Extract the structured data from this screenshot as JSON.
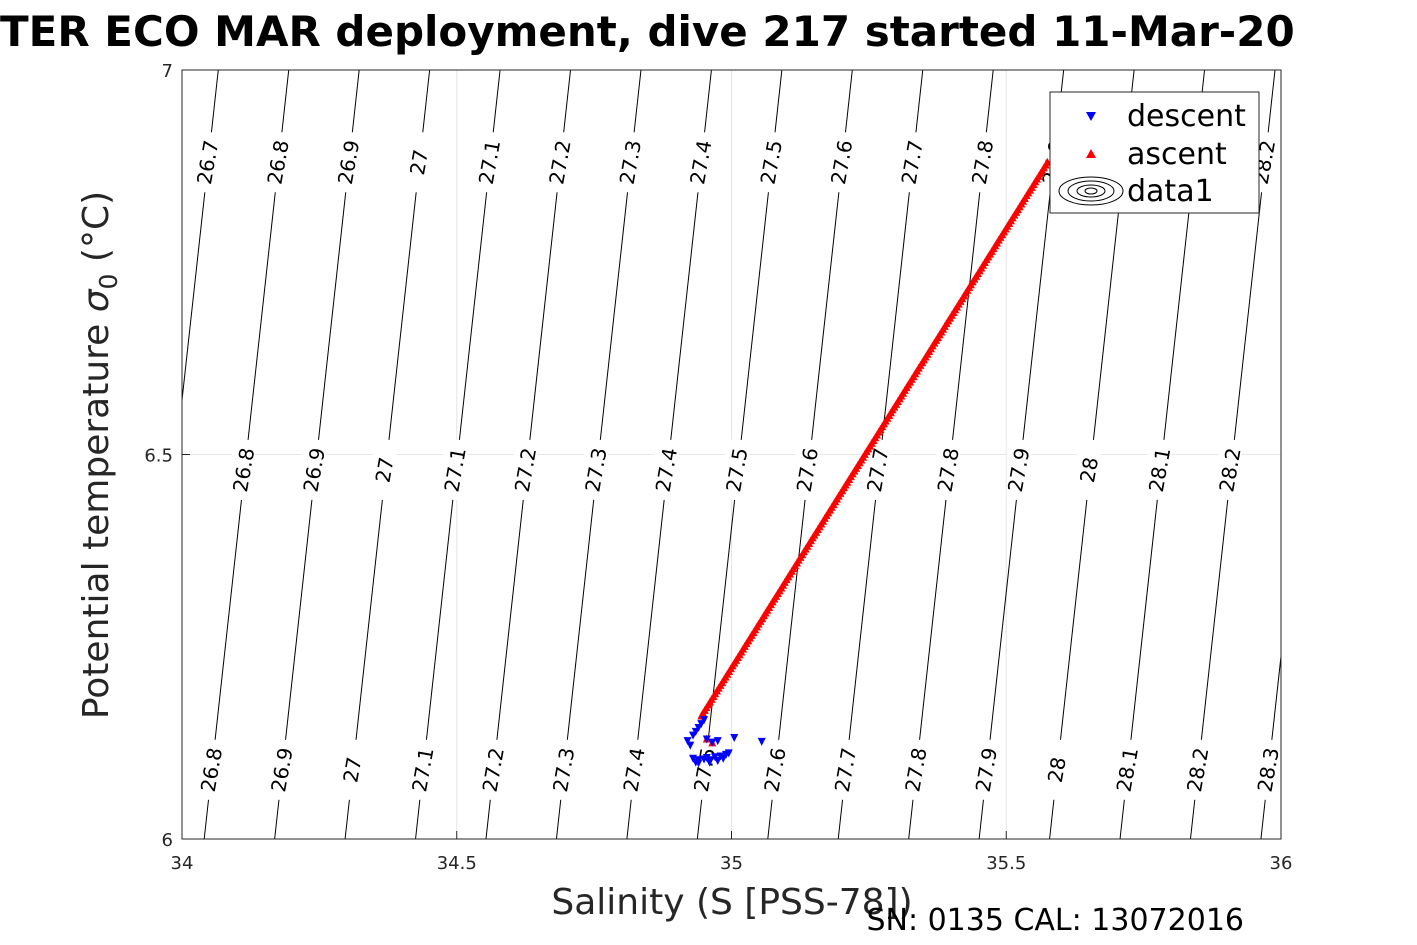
{
  "chart_data": {
    "type": "scatter",
    "title": "TER ECO MAR deployment, dive 217 started 11-Mar-20",
    "xlabel": "Salinity (S [PSS-78])",
    "ylabel_main": "Potential temperature ",
    "ylabel_sigma": "σ",
    "ylabel_sub": "0",
    "ylabel_unit": " (°C)",
    "footer": "SN: 0135  CAL: 13072016",
    "xlim": [
      34,
      36
    ],
    "ylim": [
      6,
      7
    ],
    "xticks": [
      "34",
      "34.5",
      "35",
      "35.5",
      "36"
    ],
    "yticks": [
      "6",
      "6.5",
      "7"
    ],
    "grid": true,
    "legend_position": "top-right",
    "legend": [
      {
        "name": "descent",
        "marker": "triangle-down",
        "color": "#0000ff"
      },
      {
        "name": "ascent",
        "marker": "triangle-up",
        "color": "#ff0000"
      },
      {
        "name": "data1",
        "marker": "contour",
        "color": "#000000"
      }
    ],
    "density_contours": {
      "levels": [
        26.7,
        26.8,
        26.9,
        27.0,
        27.1,
        27.2,
        27.3,
        27.4,
        27.5,
        27.6,
        27.7,
        27.8,
        27.9,
        28.0,
        28.1,
        28.2,
        28.3
      ],
      "label_rows": [
        {
          "y": 6.88,
          "labels": [
            "26.7",
            "26.8",
            "26.9",
            "27",
            "27.1",
            "27.2",
            "27.3",
            "27.4",
            "27.5",
            "27.6",
            "27.7",
            "27.8",
            "27.9",
            "28.2"
          ]
        },
        {
          "y": 6.48,
          "labels": [
            "26.8",
            "26.9",
            "27",
            "27.1",
            "27.2",
            "27.3",
            "27.4",
            "27.5",
            "27.6",
            "27.7",
            "27.8",
            "27.9",
            "28",
            "28.1",
            "28.2"
          ]
        },
        {
          "y": 6.09,
          "labels": [
            "26.8",
            "26.9",
            "27",
            "27.1",
            "27.2",
            "27.3",
            "27.4",
            "27.5",
            "27.6",
            "27.7",
            "27.8",
            "27.9",
            "28",
            "28.1",
            "28.2",
            "28.3"
          ]
        }
      ]
    },
    "series": [
      {
        "name": "descent",
        "x": [
          34.93,
          34.935,
          34.94,
          34.945,
          34.95,
          34.92,
          34.925,
          34.93,
          34.94,
          34.95,
          34.955,
          34.96,
          34.97,
          34.98,
          34.99,
          34.995,
          34.935,
          34.94,
          34.96,
          34.975,
          34.985,
          34.955,
          34.965,
          34.975,
          35.005,
          35.055
        ],
        "y": [
          6.135,
          6.14,
          6.145,
          6.15,
          6.155,
          6.128,
          6.122,
          6.105,
          6.103,
          6.104,
          6.106,
          6.103,
          6.107,
          6.108,
          6.11,
          6.112,
          6.1,
          6.099,
          6.1,
          6.102,
          6.105,
          6.13,
          6.126,
          6.128,
          6.132,
          6.127
        ]
      },
      {
        "name": "ascent",
        "x_start": 34.945,
        "y_start": 6.16,
        "x_end": 35.575,
        "y_end": 6.88,
        "count": 200,
        "extra": [
          [
            34.955,
            6.13
          ],
          [
            34.965,
            6.125
          ]
        ]
      }
    ]
  }
}
